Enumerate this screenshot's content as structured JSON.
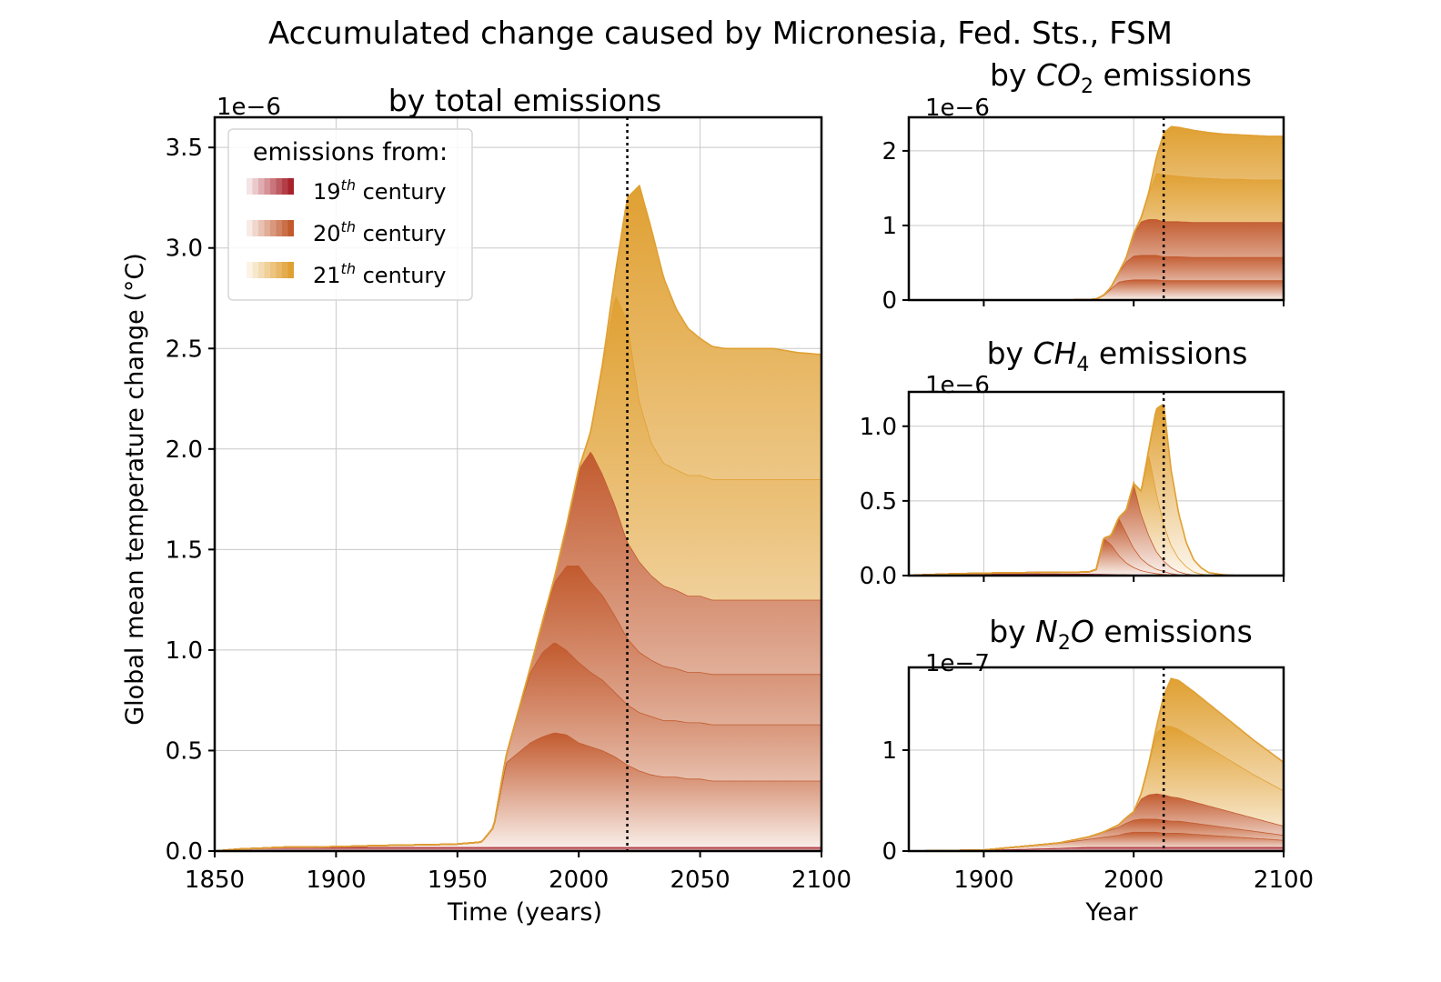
{
  "figure": {
    "suptitle": "Accumulated change caused by Micronesia, Fed. Sts., FSM"
  },
  "legend": {
    "title": "emissions from:",
    "entries": [
      {
        "sup": "th",
        "label": "century",
        "century": "19"
      },
      {
        "sup": "th",
        "label": "century",
        "century": "20"
      },
      {
        "sup": "th",
        "label": "century",
        "century": "21"
      }
    ]
  },
  "colors": {
    "c19": "#a8222c",
    "c20": "#c25a2e",
    "c21": "#e0a032",
    "grid": "#c8c8c8",
    "frame": "#000000"
  },
  "chart_data": [
    {
      "id": "total",
      "type": "area",
      "stacked": true,
      "title": "by total emissions",
      "xlabel": "Time (years)",
      "ylabel": "Global mean temperature change (°C)",
      "offset_label": "1e−6",
      "xlim": [
        1850,
        2100
      ],
      "ylim": [
        0,
        3.65
      ],
      "xticks": [
        "1850",
        "1900",
        "1950",
        "2000",
        "2050",
        "2100"
      ],
      "yticks": [
        "0.0",
        "0.5",
        "1.0",
        "1.5",
        "2.0",
        "2.5",
        "3.0",
        "3.5"
      ],
      "vline": 2020,
      "grid": true,
      "legend_position": "upper-left",
      "x": [
        1850,
        1860,
        1870,
        1880,
        1890,
        1900,
        1910,
        1920,
        1930,
        1940,
        1950,
        1960,
        1965,
        1970,
        1975,
        1980,
        1985,
        1990,
        1995,
        2000,
        2005,
        2010,
        2015,
        2020,
        2025,
        2030,
        2035,
        2040,
        2045,
        2050,
        2055,
        2060,
        2070,
        2080,
        2090,
        2100
      ],
      "series": [
        {
          "century": "19",
          "values": [
            0,
            0.01,
            0.015,
            0.02,
            0.02,
            0.02,
            0.02,
            0.02,
            0.02,
            0.02,
            0.02,
            0.02,
            0.02,
            0.02,
            0.02,
            0.02,
            0.02,
            0.02,
            0.02,
            0.02,
            0.02,
            0.02,
            0.02,
            0.02,
            0.02,
            0.02,
            0.02,
            0.02,
            0.02,
            0.02,
            0.02,
            0.02,
            0.02,
            0.02,
            0.02,
            0.02
          ]
        },
        {
          "century": "20",
          "values": [
            0,
            0,
            0,
            0,
            0,
            0.002,
            0.005,
            0.008,
            0.01,
            0.012,
            0.015,
            0.025,
            0.1,
            0.42,
            0.47,
            0.52,
            0.55,
            0.57,
            0.56,
            0.52,
            0.5,
            0.48,
            0.45,
            0.41,
            0.38,
            0.36,
            0.35,
            0.35,
            0.34,
            0.34,
            0.33,
            0.33,
            0.33,
            0.33,
            0.33,
            0.33
          ]
        },
        {
          "century": "20",
          "values": [
            0,
            0,
            0,
            0,
            0,
            0,
            0,
            0,
            0,
            0,
            0,
            0,
            0,
            0.03,
            0.2,
            0.35,
            0.42,
            0.45,
            0.42,
            0.4,
            0.37,
            0.35,
            0.32,
            0.3,
            0.29,
            0.29,
            0.28,
            0.28,
            0.28,
            0.28,
            0.28,
            0.28,
            0.28,
            0.28,
            0.28,
            0.28
          ]
        },
        {
          "century": "20",
          "values": [
            0,
            0,
            0,
            0,
            0,
            0,
            0,
            0,
            0,
            0,
            0,
            0,
            0,
            0,
            0,
            0.02,
            0.15,
            0.3,
            0.42,
            0.48,
            0.45,
            0.42,
            0.38,
            0.33,
            0.3,
            0.28,
            0.27,
            0.26,
            0.25,
            0.25,
            0.25,
            0.25,
            0.25,
            0.25,
            0.25,
            0.25
          ]
        },
        {
          "century": "20",
          "values": [
            0,
            0,
            0,
            0,
            0,
            0,
            0,
            0,
            0,
            0,
            0,
            0,
            0,
            0,
            0,
            0,
            0,
            0.02,
            0.2,
            0.48,
            0.65,
            0.6,
            0.55,
            0.48,
            0.45,
            0.42,
            0.4,
            0.39,
            0.38,
            0.38,
            0.37,
            0.37,
            0.37,
            0.37,
            0.37,
            0.37
          ]
        },
        {
          "century": "21",
          "values": [
            0,
            0,
            0,
            0,
            0,
            0,
            0,
            0,
            0,
            0,
            0,
            0,
            0,
            0,
            0,
            0,
            0,
            0,
            0,
            0,
            0.1,
            0.56,
            1.05,
            1.1,
            0.8,
            0.66,
            0.61,
            0.6,
            0.6,
            0.6,
            0.6,
            0.6,
            0.6,
            0.6,
            0.6,
            0.6
          ]
        },
        {
          "century": "21",
          "values": [
            0,
            0,
            0,
            0,
            0,
            0,
            0,
            0,
            0,
            0,
            0,
            0,
            0,
            0,
            0,
            0,
            0,
            0,
            0,
            0,
            0,
            0.01,
            0.1,
            0.61,
            1.07,
            1.06,
            0.92,
            0.8,
            0.73,
            0.68,
            0.66,
            0.65,
            0.65,
            0.65,
            0.63,
            0.62
          ]
        }
      ]
    },
    {
      "id": "co2",
      "type": "area",
      "stacked": true,
      "title_prefix": "by ",
      "title_gas": "CO",
      "title_sub": "2",
      "title_suffix": " emissions",
      "offset_label": "1e−6",
      "xlim": [
        1850,
        2100
      ],
      "ylim": [
        0,
        2.45
      ],
      "yticks": [
        "0",
        "1",
        "2"
      ],
      "vline": 2020,
      "grid": true,
      "x": [
        1850,
        1900,
        1950,
        1960,
        1970,
        1975,
        1980,
        1985,
        1990,
        1995,
        2000,
        2005,
        2010,
        2015,
        2020,
        2025,
        2030,
        2040,
        2050,
        2060,
        2070,
        2080,
        2090,
        2100
      ],
      "series": [
        {
          "century": "19",
          "values": [
            0,
            0,
            0.002,
            0.003,
            0.004,
            0.005,
            0.005,
            0.005,
            0.005,
            0.005,
            0.005,
            0.005,
            0.005,
            0.005,
            0.005,
            0.005,
            0.005,
            0.005,
            0.005,
            0.005,
            0.005,
            0.005,
            0.005,
            0.005
          ]
        },
        {
          "century": "20",
          "values": [
            0,
            0,
            0,
            0,
            0,
            0.01,
            0.06,
            0.15,
            0.24,
            0.26,
            0.27,
            0.27,
            0.27,
            0.27,
            0.26,
            0.26,
            0.26,
            0.26,
            0.26,
            0.26,
            0.26,
            0.26,
            0.26,
            0.26
          ]
        },
        {
          "century": "20",
          "values": [
            0,
            0,
            0,
            0,
            0,
            0,
            0,
            0.02,
            0.12,
            0.25,
            0.32,
            0.33,
            0.33,
            0.33,
            0.32,
            0.32,
            0.32,
            0.31,
            0.31,
            0.31,
            0.31,
            0.31,
            0.31,
            0.31
          ]
        },
        {
          "century": "20",
          "values": [
            0,
            0,
            0,
            0,
            0,
            0,
            0,
            0,
            0,
            0.05,
            0.3,
            0.45,
            0.48,
            0.48,
            0.47,
            0.47,
            0.47,
            0.47,
            0.47,
            0.47,
            0.47,
            0.47,
            0.47,
            0.47
          ]
        },
        {
          "century": "21",
          "values": [
            0,
            0,
            0,
            0,
            0,
            0,
            0,
            0,
            0,
            0,
            0,
            0.05,
            0.35,
            0.62,
            0.63,
            0.62,
            0.61,
            0.6,
            0.59,
            0.58,
            0.58,
            0.57,
            0.57,
            0.57
          ]
        },
        {
          "century": "21",
          "values": [
            0,
            0,
            0,
            0,
            0,
            0,
            0,
            0,
            0,
            0,
            0,
            0,
            0,
            0.2,
            0.55,
            0.65,
            0.65,
            0.63,
            0.61,
            0.6,
            0.59,
            0.59,
            0.58,
            0.58
          ]
        }
      ]
    },
    {
      "id": "ch4",
      "type": "area",
      "stacked": true,
      "title_prefix": "by ",
      "title_gas": "CH",
      "title_sub": "4",
      "title_suffix": " emissions",
      "offset_label": "1e−6",
      "xlim": [
        1850,
        2100
      ],
      "ylim": [
        0,
        1.23
      ],
      "yticks": [
        "0.0",
        "0.5",
        "1.0"
      ],
      "vline": 2020,
      "grid": true,
      "x": [
        1850,
        1860,
        1880,
        1900,
        1920,
        1940,
        1960,
        1970,
        1975,
        1980,
        1985,
        1990,
        1995,
        2000,
        2005,
        2010,
        2015,
        2020,
        2025,
        2030,
        2035,
        2040,
        2045,
        2050,
        2060,
        2070,
        2080,
        2100
      ],
      "series": [
        {
          "century": "19",
          "values": [
            0,
            0.005,
            0.012,
            0.014,
            0.014,
            0.013,
            0.012,
            0.012,
            0.011,
            0.01,
            0.009,
            0.008,
            0.007,
            0.006,
            0.005,
            0.004,
            0.003,
            0.002,
            0.001,
            0,
            0,
            0,
            0,
            0,
            0,
            0,
            0,
            0
          ]
        },
        {
          "century": "20",
          "values": [
            0,
            0,
            0,
            0.002,
            0.005,
            0.008,
            0.01,
            0.012,
            0.03,
            0.24,
            0.2,
            0.13,
            0.08,
            0.05,
            0.03,
            0.02,
            0.012,
            0.008,
            0.004,
            0.002,
            0.001,
            0,
            0,
            0,
            0,
            0,
            0,
            0
          ]
        },
        {
          "century": "20",
          "values": [
            0,
            0,
            0,
            0,
            0,
            0,
            0,
            0,
            0,
            0,
            0.06,
            0.25,
            0.2,
            0.13,
            0.08,
            0.05,
            0.03,
            0.02,
            0.01,
            0.005,
            0.002,
            0.001,
            0,
            0,
            0,
            0,
            0,
            0
          ]
        },
        {
          "century": "20",
          "values": [
            0,
            0,
            0,
            0,
            0,
            0,
            0,
            0,
            0,
            0,
            0,
            0,
            0.15,
            0.43,
            0.3,
            0.2,
            0.12,
            0.07,
            0.04,
            0.02,
            0.01,
            0.005,
            0.002,
            0,
            0,
            0,
            0,
            0
          ]
        },
        {
          "century": "21",
          "values": [
            0,
            0,
            0,
            0,
            0,
            0,
            0,
            0,
            0,
            0,
            0,
            0,
            0,
            0,
            0.15,
            0.55,
            0.4,
            0.25,
            0.15,
            0.09,
            0.05,
            0.02,
            0.01,
            0.005,
            0,
            0,
            0,
            0
          ]
        },
        {
          "century": "21",
          "values": [
            0,
            0,
            0,
            0,
            0,
            0,
            0,
            0,
            0,
            0,
            0,
            0,
            0,
            0,
            0,
            0.02,
            0.55,
            0.8,
            0.5,
            0.3,
            0.16,
            0.08,
            0.04,
            0.015,
            0.005,
            0,
            0,
            0
          ]
        }
      ]
    },
    {
      "id": "n2o",
      "type": "area",
      "stacked": true,
      "title_prefix": "by ",
      "title_gas": "N",
      "title_sub": "2",
      "title_gas2": "O",
      "title_suffix": " emissions",
      "xlabel": "Year",
      "offset_label": "1e−7",
      "xlim": [
        1850,
        2100
      ],
      "ylim": [
        0,
        1.82
      ],
      "xticks": [
        "1900",
        "2000",
        "2100"
      ],
      "yticks": [
        "0",
        "1"
      ],
      "vline": 2020,
      "grid": true,
      "x": [
        1850,
        1900,
        1950,
        1970,
        1980,
        1990,
        1995,
        2000,
        2005,
        2010,
        2015,
        2020,
        2025,
        2030,
        2040,
        2050,
        2060,
        2070,
        2080,
        2090,
        2100
      ],
      "series": [
        {
          "century": "19",
          "values": [
            0,
            0.01,
            0.03,
            0.04,
            0.04,
            0.04,
            0.04,
            0.04,
            0.04,
            0.04,
            0.04,
            0.04,
            0.04,
            0.04,
            0.04,
            0.04,
            0.04,
            0.04,
            0.04,
            0.04,
            0.04
          ]
        },
        {
          "century": "20",
          "values": [
            0,
            0,
            0.05,
            0.08,
            0.1,
            0.12,
            0.14,
            0.15,
            0.15,
            0.15,
            0.15,
            0.14,
            0.14,
            0.14,
            0.13,
            0.12,
            0.11,
            0.1,
            0.09,
            0.08,
            0.07
          ]
        },
        {
          "century": "20",
          "values": [
            0,
            0,
            0,
            0.02,
            0.05,
            0.08,
            0.1,
            0.12,
            0.13,
            0.13,
            0.13,
            0.13,
            0.12,
            0.12,
            0.11,
            0.1,
            0.09,
            0.08,
            0.07,
            0.06,
            0.05
          ]
        },
        {
          "century": "20",
          "values": [
            0,
            0,
            0,
            0,
            0,
            0.02,
            0.05,
            0.08,
            0.2,
            0.24,
            0.25,
            0.25,
            0.24,
            0.23,
            0.21,
            0.19,
            0.17,
            0.15,
            0.13,
            0.11,
            0.09
          ]
        },
        {
          "century": "21",
          "values": [
            0,
            0,
            0,
            0,
            0,
            0,
            0,
            0,
            0.05,
            0.3,
            0.6,
            0.68,
            0.7,
            0.68,
            0.63,
            0.58,
            0.53,
            0.48,
            0.43,
            0.39,
            0.35
          ]
        },
        {
          "century": "21",
          "values": [
            0,
            0,
            0,
            0,
            0,
            0,
            0,
            0,
            0,
            0,
            0.05,
            0.3,
            0.47,
            0.48,
            0.46,
            0.43,
            0.4,
            0.37,
            0.34,
            0.31,
            0.28
          ]
        }
      ]
    }
  ]
}
